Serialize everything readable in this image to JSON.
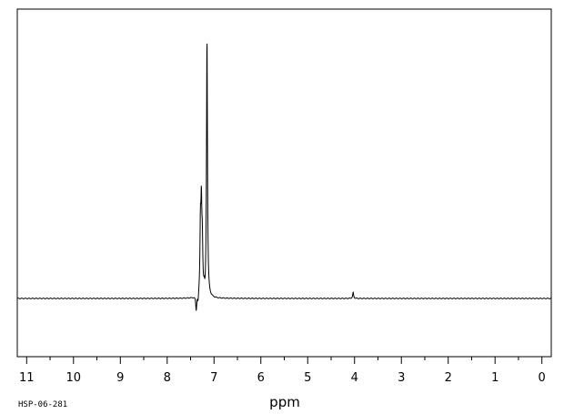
{
  "chart_data": {
    "type": "line",
    "title": "",
    "xlabel": "ppm",
    "ylabel": "",
    "sample_code": "HSP-06-281",
    "x_reversed": true,
    "xlim": [
      11.2,
      -0.2
    ],
    "ylim": [
      0,
      100
    ],
    "grid": false,
    "legend": "none",
    "line_color": "#000000",
    "x_ticks_major": [
      11,
      10,
      9,
      8,
      7,
      6,
      5,
      4,
      3,
      2,
      1,
      0
    ],
    "x_tick_labels": [
      "11",
      "10",
      "9",
      "8",
      "7",
      "6",
      "5",
      "4",
      "3",
      "2",
      "1",
      "0"
    ],
    "x_ticks_minor_step": 0.5,
    "baseline": 10,
    "peaks": [
      {
        "ppm": 7.15,
        "height": 100
      },
      {
        "ppm": 7.29,
        "height": 33
      },
      {
        "ppm": 7.27,
        "height": 38
      },
      {
        "ppm": 7.25,
        "height": 26
      },
      {
        "ppm": 7.21,
        "height": 12
      },
      {
        "ppm": 7.19,
        "height": 8
      },
      {
        "ppm": 7.34,
        "height": 7
      },
      {
        "ppm": 7.38,
        "height": 5
      },
      {
        "ppm": 4.03,
        "height": 12
      }
    ]
  }
}
